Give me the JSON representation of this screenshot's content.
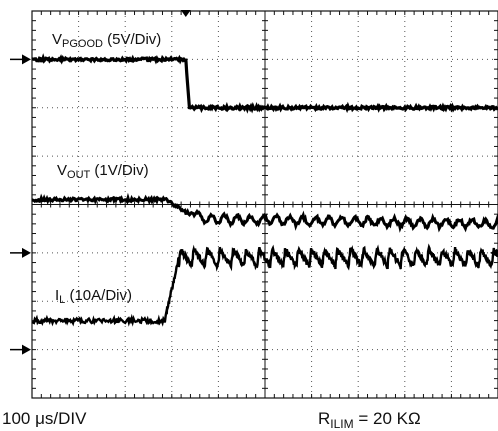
{
  "chart_data": {
    "type": "line",
    "title": "",
    "grid": true,
    "divisions": {
      "x": 10,
      "y": 8
    },
    "x_units": "div",
    "y_units": "div",
    "xlim": [
      0,
      10
    ],
    "ylim": [
      0,
      8
    ],
    "channel_labels": [
      {
        "main": "V",
        "sub": "PGOOD",
        "rest": " (5V/Div)"
      },
      {
        "main": "V",
        "sub": "OUT",
        "rest": " (1V/Div)"
      },
      {
        "main": "I",
        "sub": "L",
        "rest": " (10A/Div)"
      }
    ],
    "series": [
      {
        "name": "VPGOOD",
        "points": [
          [
            0,
            7.0
          ],
          [
            3.3,
            7.0
          ],
          [
            3.38,
            6.0
          ],
          [
            10,
            6.0
          ]
        ]
      },
      {
        "name": "VOUT",
        "points": [
          [
            0,
            4.1
          ],
          [
            2.9,
            4.1
          ],
          [
            3.05,
            4.0
          ],
          [
            3.3,
            3.85
          ],
          [
            3.7,
            3.7
          ],
          [
            10,
            3.6
          ]
        ]
      },
      {
        "name": "IL",
        "baseline": 1.6,
        "rise_start": 2.85,
        "rise_end": 3.15,
        "level": 2.9,
        "ripple_amp": 0.35,
        "ripple_period": 0.28
      }
    ]
  },
  "footer": {
    "timebase": "100 μs/DIV",
    "resistor_main": "R",
    "resistor_sub": "ILIM",
    "resistor_value": " = 20 KΩ"
  }
}
